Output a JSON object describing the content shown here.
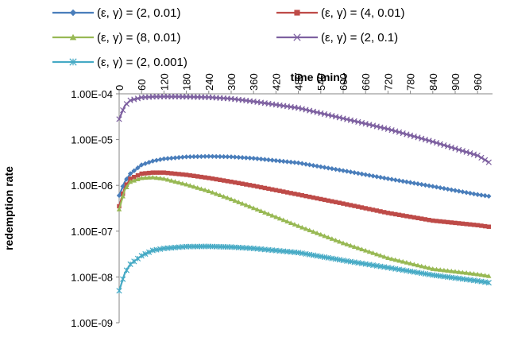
{
  "chart_data": {
    "type": "line",
    "xlabel": "time (min.)",
    "ylabel": "redemption rate",
    "y_scale": "log",
    "ylim": [
      1e-09,
      0.0001
    ],
    "xlim": [
      0,
      1000
    ],
    "x_ticks": [
      "0",
      "60",
      "120",
      "180",
      "240",
      "300",
      "360",
      "420",
      "480",
      "540",
      "600",
      "660",
      "720",
      "780",
      "840",
      "900",
      "960"
    ],
    "y_ticks": [
      "1.00E-04",
      "1.00E-05",
      "1.00E-06",
      "1.00E-07",
      "1.00E-08",
      "1.00E-09"
    ],
    "x_axis_position": "top",
    "legend_position": "top",
    "grid": false,
    "x": [
      0,
      15,
      30,
      60,
      90,
      120,
      180,
      240,
      300,
      360,
      480,
      600,
      720,
      840,
      960,
      990
    ],
    "series": [
      {
        "name": "(ε, γ) = (2, 0.01)",
        "color": "#4a7ebb",
        "marker": "diamond",
        "values": [
          6e-07,
          1.2e-06,
          1.8e-06,
          2.8e-06,
          3.4e-06,
          3.8e-06,
          4.2e-06,
          4.3e-06,
          4.2e-06,
          3.9e-06,
          3.1e-06,
          2.1e-06,
          1.4e-06,
          9.5e-07,
          6.3e-07,
          5.8e-07
        ]
      },
      {
        "name": "(ε, γ) = (4, 0.01)",
        "color": "#be4b48",
        "marker": "square",
        "values": [
          3.5e-07,
          9e-07,
          1.4e-06,
          1.8e-06,
          1.9e-06,
          1.9e-06,
          1.7e-06,
          1.45e-06,
          1.2e-06,
          9.8e-07,
          6.3e-07,
          4e-07,
          2.5e-07,
          1.7e-07,
          1.35e-07,
          1.25e-07
        ]
      },
      {
        "name": "(ε, γ) = (8, 0.01)",
        "color": "#98b954",
        "marker": "triangle",
        "values": [
          3e-07,
          8e-07,
          1.2e-06,
          1.45e-06,
          1.5e-06,
          1.4e-06,
          1.05e-06,
          7.5e-07,
          5e-07,
          3.2e-07,
          1.3e-07,
          5.5e-08,
          2.6e-08,
          1.5e-08,
          1.15e-08,
          1.05e-08
        ]
      },
      {
        "name": "(ε, γ) = (2, 0.1)",
        "color": "#7d60a0",
        "marker": "x",
        "values": [
          2.8e-05,
          5.5e-05,
          7.2e-05,
          8.3e-05,
          8.6e-05,
          8.7e-05,
          8.6e-05,
          8.4e-05,
          7.8e-05,
          6.8e-05,
          4.9e-05,
          2.9e-05,
          1.7e-05,
          9e-06,
          4.5e-06,
          3.2e-06
        ]
      },
      {
        "name": "(ε, γ) = (2, 0.001)",
        "color": "#46aac5",
        "marker": "star",
        "values": [
          5e-09,
          1.2e-08,
          1.9e-08,
          2.9e-08,
          3.8e-08,
          4.2e-08,
          4.6e-08,
          4.65e-08,
          4.5e-08,
          4.2e-08,
          3.4e-08,
          2.3e-08,
          1.6e-08,
          1.1e-08,
          8.2e-09,
          7.5e-09
        ]
      }
    ]
  }
}
